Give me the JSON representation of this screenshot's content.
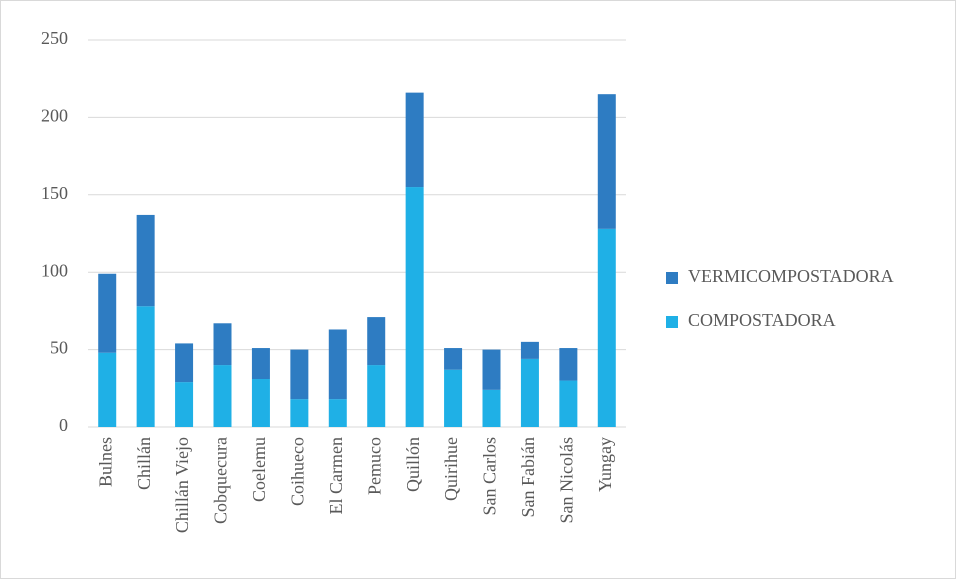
{
  "chart_data": {
    "type": "stacked_bar",
    "categories": [
      "Bulnes",
      "Chillán",
      "Chillán Viejo",
      "Cobquecura",
      "Coelemu",
      "Coihueco",
      "El Carmen",
      "Pemuco",
      "Quillón",
      "Quirihue",
      "San Carlos",
      "San Fabián",
      "San Nicolás",
      "Yungay"
    ],
    "series": [
      {
        "name": "COMPOSTADORA",
        "color": "#1fb0e6",
        "values": [
          48,
          78,
          29,
          40,
          31,
          18,
          18,
          40,
          155,
          37,
          24,
          44,
          30,
          128
        ]
      },
      {
        "name": "VERMICOMPOSTADORA",
        "color": "#2e7cc2",
        "values": [
          51,
          59,
          25,
          27,
          20,
          32,
          45,
          31,
          61,
          14,
          26,
          11,
          21,
          87
        ]
      }
    ],
    "ylim": [
      0,
      250
    ],
    "yticks": [
      0,
      50,
      100,
      150,
      200,
      250
    ],
    "grid": true,
    "legend": "right"
  }
}
